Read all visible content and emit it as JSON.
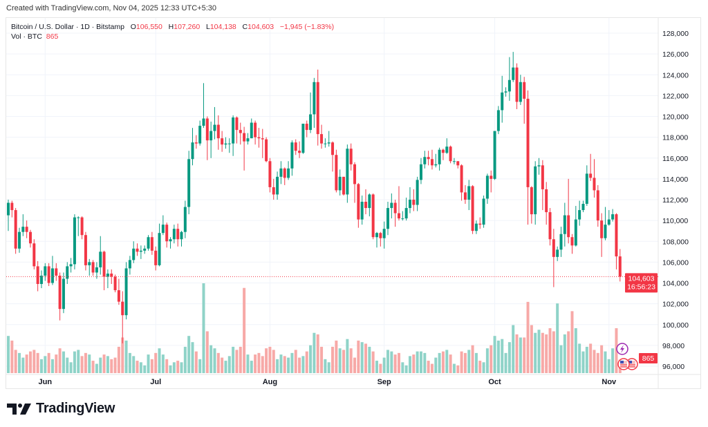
{
  "header": {
    "created": "Created with TradingView.com, Nov 04, 2025 12:33 UTC+5:30"
  },
  "legend": {
    "symbol": "Bitcoin / U.S. Dollar · 1D · Bitstamp",
    "o_label": "O",
    "o_value": "106,550",
    "h_label": "H",
    "h_value": "107,260",
    "l_label": "L",
    "l_value": "104,138",
    "c_label": "C",
    "c_value": "104,603",
    "change": "−1,945 (−1.83%)",
    "vol_label": "Vol · BTC",
    "vol_value": "865"
  },
  "last_price": {
    "price": "104,603",
    "countdown": "16:56:23"
  },
  "last_volume": "865",
  "footer": {
    "brand": "TradingView"
  },
  "colors": {
    "up": "#089981",
    "down": "#f23645",
    "volume_up": "#8fd3c8",
    "volume_down": "#f7a9a7",
    "event_purple": "#9c27b0"
  },
  "icons": [
    "lightning-event-icon",
    "us-flag-event-icon",
    "us-flag-event-icon",
    "tradingview-logo-icon"
  ],
  "chart_data": {
    "type": "candlestick",
    "interval": "1D",
    "first_date": "2025-05-22",
    "ylim": [
      96000,
      128000
    ],
    "y_ticks": [
      "96,000",
      "98,000",
      "100,000",
      "102,000",
      "104,000",
      "106,000",
      "108,000",
      "110,000",
      "112,000",
      "114,000",
      "116,000",
      "118,000",
      "120,000",
      "122,000",
      "124,000",
      "126,000",
      "128,000"
    ],
    "x_ticks": [
      {
        "label": "Jun",
        "index": 10
      },
      {
        "label": "Jul",
        "index": 40
      },
      {
        "label": "Aug",
        "index": 71
      },
      {
        "label": "Sep",
        "index": 102
      },
      {
        "label": "Oct",
        "index": 132
      },
      {
        "label": "Nov",
        "index": 163
      }
    ],
    "grid": true,
    "first_open": 110500,
    "close": [
      111700,
      111000,
      107300,
      108900,
      109400,
      108900,
      107800,
      105600,
      103900,
      104700,
      105600,
      104000,
      105400,
      104700,
      101500,
      104400,
      105600,
      105800,
      110300,
      110300,
      108600,
      105700,
      106000,
      105000,
      105500,
      107000,
      104600,
      104900,
      104600,
      103300,
      102200,
      100900,
      105400,
      106200,
      107300,
      107000,
      107100,
      107300,
      108400,
      107100,
      105700,
      108800,
      109600,
      108000,
      108200,
      109200,
      108200,
      108900,
      111300,
      115900,
      117500,
      117400,
      119100,
      119800,
      117700,
      118600,
      119200,
      117900,
      117300,
      117400,
      117400,
      119900,
      118700,
      118400,
      117600,
      117900,
      119400,
      118000,
      117900,
      117800,
      115700,
      113200,
      112500,
      114200,
      115000,
      114100,
      115000,
      117500,
      116700,
      116500,
      119300,
      118700,
      120200,
      123300,
      118300,
      117400,
      117400,
      117500,
      116300,
      112900,
      114200,
      112500,
      116900,
      115400,
      113500,
      110100,
      111800,
      111200,
      112500,
      108400,
      108800,
      108300,
      109200,
      111200,
      111700,
      110700,
      110200,
      110200,
      111200,
      112000,
      111500,
      113900,
      115400,
      116100,
      115900,
      115300,
      115400,
      116800,
      116500,
      117100,
      115700,
      115700,
      115300,
      112700,
      112000,
      113300,
      109000,
      109700,
      109600,
      112100,
      114300,
      114000,
      118600,
      120600,
      122300,
      122400,
      123500,
      124700,
      121400,
      123300,
      121700,
      113200,
      110600,
      115200,
      115300,
      113000,
      110800,
      108200,
      106500,
      107200,
      108700,
      110500,
      108400,
      107600,
      110100,
      111000,
      111600,
      114500,
      114100,
      112900,
      110000,
      108300,
      109600,
      110100,
      110600,
      106550,
      104603
    ],
    "high": [
      112000,
      111900,
      111200,
      109300,
      110600,
      110000,
      109100,
      108200,
      106100,
      105200,
      105900,
      105900,
      106600,
      105900,
      105000,
      105000,
      106000,
      106400,
      110600,
      110400,
      110400,
      108900,
      106300,
      106200,
      106000,
      108500,
      107100,
      105300,
      105300,
      104800,
      104400,
      103200,
      106000,
      106600,
      108000,
      107800,
      107600,
      107600,
      108600,
      108900,
      107500,
      109700,
      110500,
      109800,
      108400,
      109600,
      109700,
      109000,
      111900,
      116700,
      118900,
      118200,
      119600,
      123200,
      120000,
      119500,
      120900,
      120100,
      118600,
      118000,
      117900,
      120100,
      120000,
      119400,
      119000,
      118400,
      119800,
      119600,
      118900,
      118800,
      118000,
      116000,
      114000,
      114700,
      115700,
      115100,
      115700,
      117700,
      117800,
      117600,
      119300,
      119600,
      122300,
      123700,
      124500,
      119200,
      117900,
      118600,
      117600,
      116800,
      114900,
      114200,
      117300,
      117400,
      115600,
      113600,
      112400,
      113000,
      112600,
      112600,
      108900,
      108900,
      109900,
      111800,
      112600,
      112000,
      113300,
      110900,
      112200,
      113200,
      113000,
      114200,
      116000,
      116700,
      116700,
      116800,
      116400,
      117000,
      116900,
      117900,
      117200,
      116000,
      115700,
      115400,
      113400,
      113900,
      113400,
      110000,
      110300,
      112400,
      114500,
      114800,
      118600,
      121000,
      123900,
      122800,
      125700,
      126200,
      125100,
      124000,
      123800,
      122500,
      113300,
      115700,
      116000,
      115800,
      113700,
      111200,
      109200,
      107500,
      109400,
      111700,
      114000,
      108700,
      111400,
      111900,
      111900,
      115300,
      116400,
      115900,
      113400,
      110700,
      111300,
      111000,
      111100,
      110700,
      107260
    ],
    "low": [
      109000,
      110300,
      106800,
      106900,
      108500,
      108300,
      107400,
      105300,
      103200,
      103500,
      104200,
      103700,
      103800,
      104200,
      100400,
      101100,
      103900,
      105000,
      105300,
      108500,
      108200,
      105200,
      104700,
      104700,
      104400,
      104800,
      103300,
      103500,
      103900,
      103100,
      101900,
      98200,
      100500,
      104800,
      105900,
      106600,
      106300,
      106800,
      107100,
      106700,
      105200,
      105600,
      108600,
      107400,
      107300,
      107800,
      107500,
      107500,
      108300,
      110600,
      115300,
      116900,
      117200,
      118900,
      115800,
      116000,
      117800,
      116800,
      116600,
      116900,
      116500,
      116200,
      117400,
      117300,
      114800,
      117300,
      117900,
      117300,
      117000,
      116000,
      115600,
      112700,
      112000,
      112000,
      113500,
      113400,
      113900,
      114300,
      116300,
      116000,
      116400,
      118000,
      118400,
      118900,
      117200,
      116900,
      117000,
      117100,
      114700,
      112700,
      112400,
      112400,
      111700,
      114800,
      111700,
      109300,
      109600,
      110600,
      110400,
      108200,
      107400,
      107500,
      107300,
      108600,
      110200,
      109400,
      110000,
      110000,
      110000,
      110700,
      110900,
      110900,
      113500,
      115000,
      115300,
      114900,
      115100,
      114800,
      115800,
      116400,
      115500,
      115400,
      115000,
      111900,
      111600,
      111000,
      108700,
      108700,
      109200,
      109300,
      111600,
      112700,
      113900,
      118300,
      119400,
      121900,
      121500,
      123300,
      120700,
      121100,
      119300,
      109600,
      109700,
      109600,
      114400,
      111000,
      109600,
      107600,
      103600,
      106100,
      106500,
      107500,
      107800,
      106800,
      107500,
      109500,
      110800,
      111400,
      113800,
      112200,
      109400,
      106500,
      108100,
      109500,
      109900,
      105300,
      104138
    ],
    "volume_unit": "BTC",
    "volume": [
      2400,
      2100,
      1500,
      1300,
      1000,
      1200,
      1400,
      1500,
      1300,
      900,
      1100,
      1300,
      900,
      1200,
      1600,
      1400,
      1000,
      700,
      1400,
      1500,
      1100,
      1300,
      1200,
      800,
      600,
      1000,
      1200,
      1100,
      900,
      1000,
      1700,
      2300,
      2100,
      1300,
      1100,
      800,
      700,
      500,
      1200,
      900,
      1300,
      1600,
      1200,
      900,
      500,
      700,
      800,
      700,
      1700,
      2400,
      2000,
      1400,
      900,
      5800,
      2700,
      1800,
      1600,
      1300,
      1000,
      800,
      1100,
      1700,
      1500,
      1700,
      5500,
      1200,
      800,
      1200,
      1300,
      1100,
      1600,
      1700,
      1500,
      900,
      1200,
      1100,
      1000,
      1300,
      1500,
      1000,
      1100,
      1400,
      1800,
      2600,
      2500,
      1700,
      900,
      700,
      1700,
      2100,
      1600,
      1500,
      2200,
      1600,
      1000,
      2100,
      2000,
      1900,
      1700,
      1400,
      800,
      600,
      1000,
      1500,
      1400,
      1200,
      1300,
      700,
      500,
      1100,
      1200,
      1400,
      1400,
      1300,
      800,
      600,
      1000,
      1300,
      1400,
      1500,
      1200,
      600,
      500,
      1400,
      1300,
      1500,
      1800,
      1300,
      800,
      700,
      1600,
      1800,
      2400,
      2100,
      2200,
      1300,
      2000,
      3100,
      2500,
      2300,
      2300,
      4600,
      3100,
      2600,
      2800,
      2600,
      2500,
      2900,
      2700,
      4500,
      1800,
      2500,
      2700,
      4000,
      2900,
      1900,
      1400,
      1700,
      1900,
      1500,
      1300,
      1800,
      1400,
      900,
      1600,
      2900,
      865
    ]
  }
}
